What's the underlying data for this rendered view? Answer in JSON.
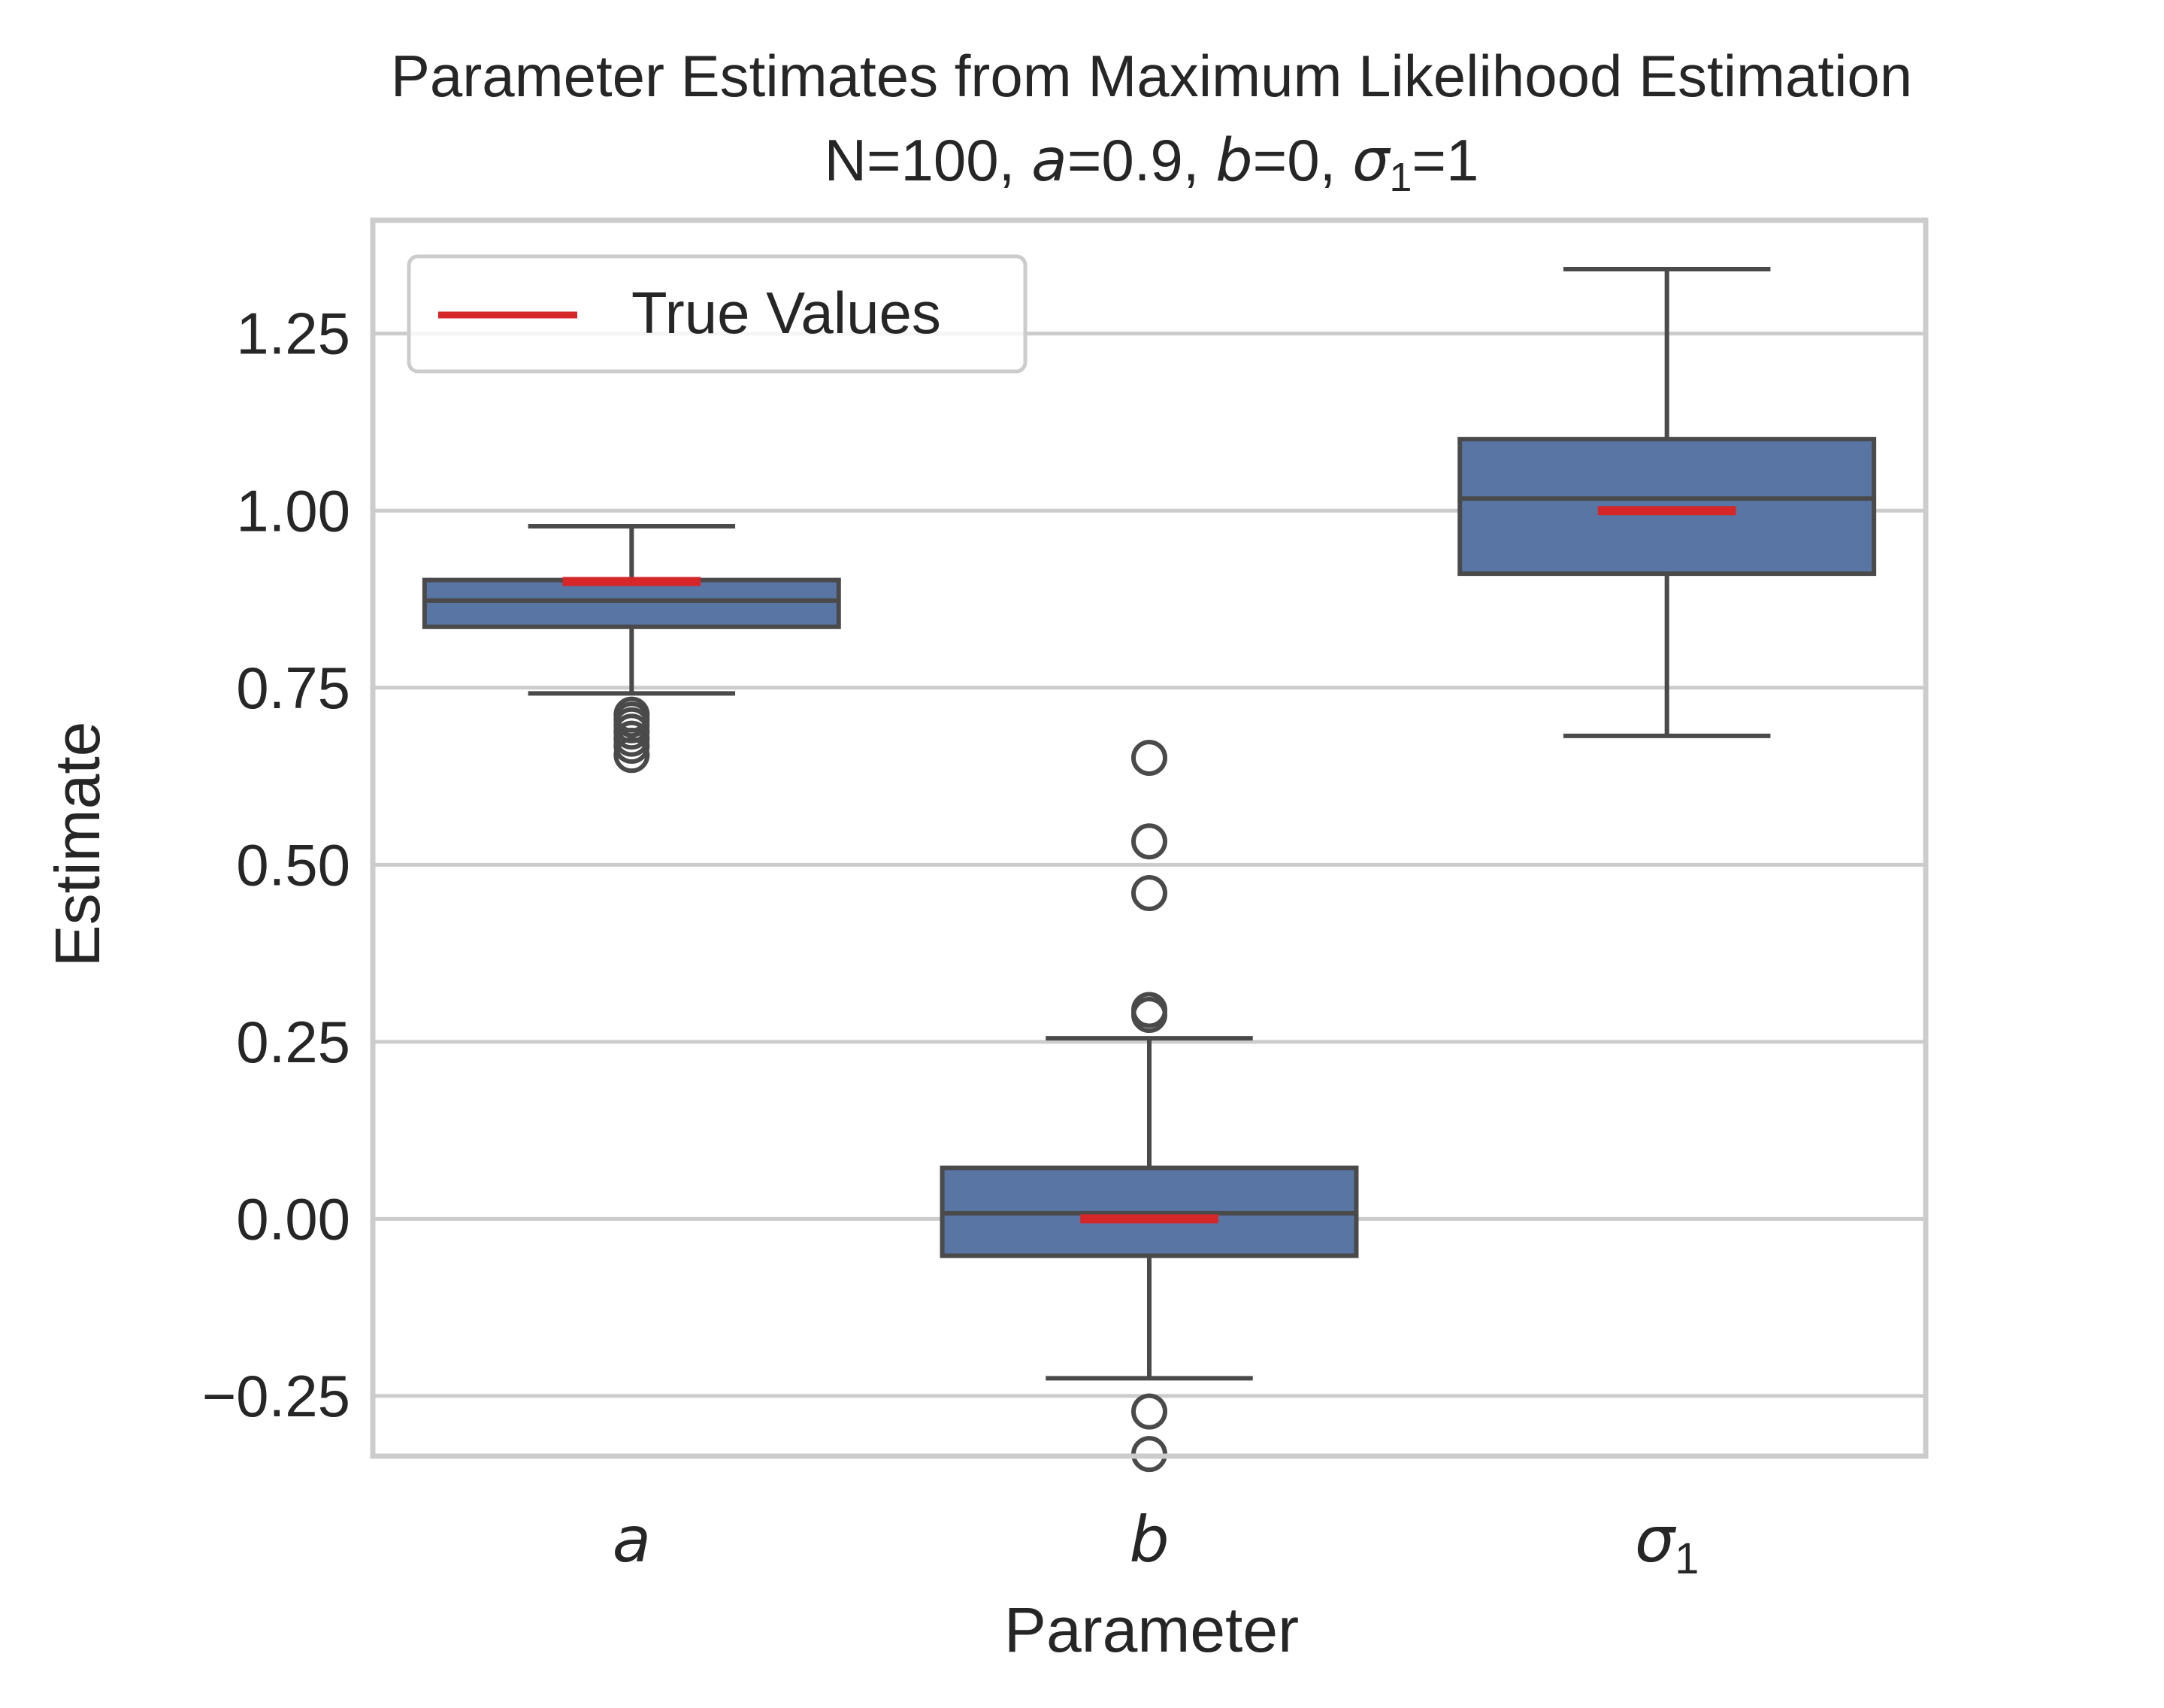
{
  "chart_data": {
    "type": "box",
    "title_line1": "Parameter Estimates from Maximum Likelihood Estimation",
    "title_line2": {
      "prefix": "N=100, ",
      "a_sym": "a",
      "a_val": "=0.9, ",
      "b_sym": "b",
      "b_val": "=0, ",
      "sigma_sym": "σ",
      "sigma_sub": "1",
      "sigma_val": "=1"
    },
    "xlabel": "Parameter",
    "ylabel": "Estimate",
    "categories": [
      {
        "symbol": "a",
        "subscript": ""
      },
      {
        "symbol": "b",
        "subscript": ""
      },
      {
        "symbol": "σ",
        "subscript": "1"
      }
    ],
    "ylim": [
      -0.335,
      1.41
    ],
    "yticks": [
      -0.25,
      0.0,
      0.25,
      0.5,
      0.75,
      1.0,
      1.25
    ],
    "ytick_labels": [
      "−0.25",
      "0.00",
      "0.25",
      "0.50",
      "0.75",
      "1.00",
      "1.25"
    ],
    "grid": "horizontal",
    "legend": {
      "position": "top-left",
      "label": "True Values"
    },
    "box_color": "#5875a4",
    "edge_color": "#4a4a4a",
    "true_value_color": "#d62728",
    "boxes": [
      {
        "name": "a",
        "whisker_low": 0.742,
        "q1": 0.836,
        "median": 0.873,
        "q3": 0.902,
        "whisker_high": 0.978,
        "outliers": [
          0.655,
          0.668,
          0.678,
          0.688,
          0.697,
          0.705,
          0.712
        ],
        "true_value": 0.9
      },
      {
        "name": "b",
        "whisker_low": -0.225,
        "q1": -0.052,
        "median": 0.008,
        "q3": 0.072,
        "whisker_high": 0.255,
        "outliers": [
          -0.332,
          -0.272,
          0.288,
          0.295,
          0.46,
          0.533,
          0.651
        ],
        "true_value": 0.0
      },
      {
        "name": "sigma1",
        "whisker_low": 0.682,
        "q1": 0.911,
        "median": 1.017,
        "q3": 1.101,
        "whisker_high": 1.341,
        "outliers": [],
        "true_value": 1.0
      }
    ]
  }
}
